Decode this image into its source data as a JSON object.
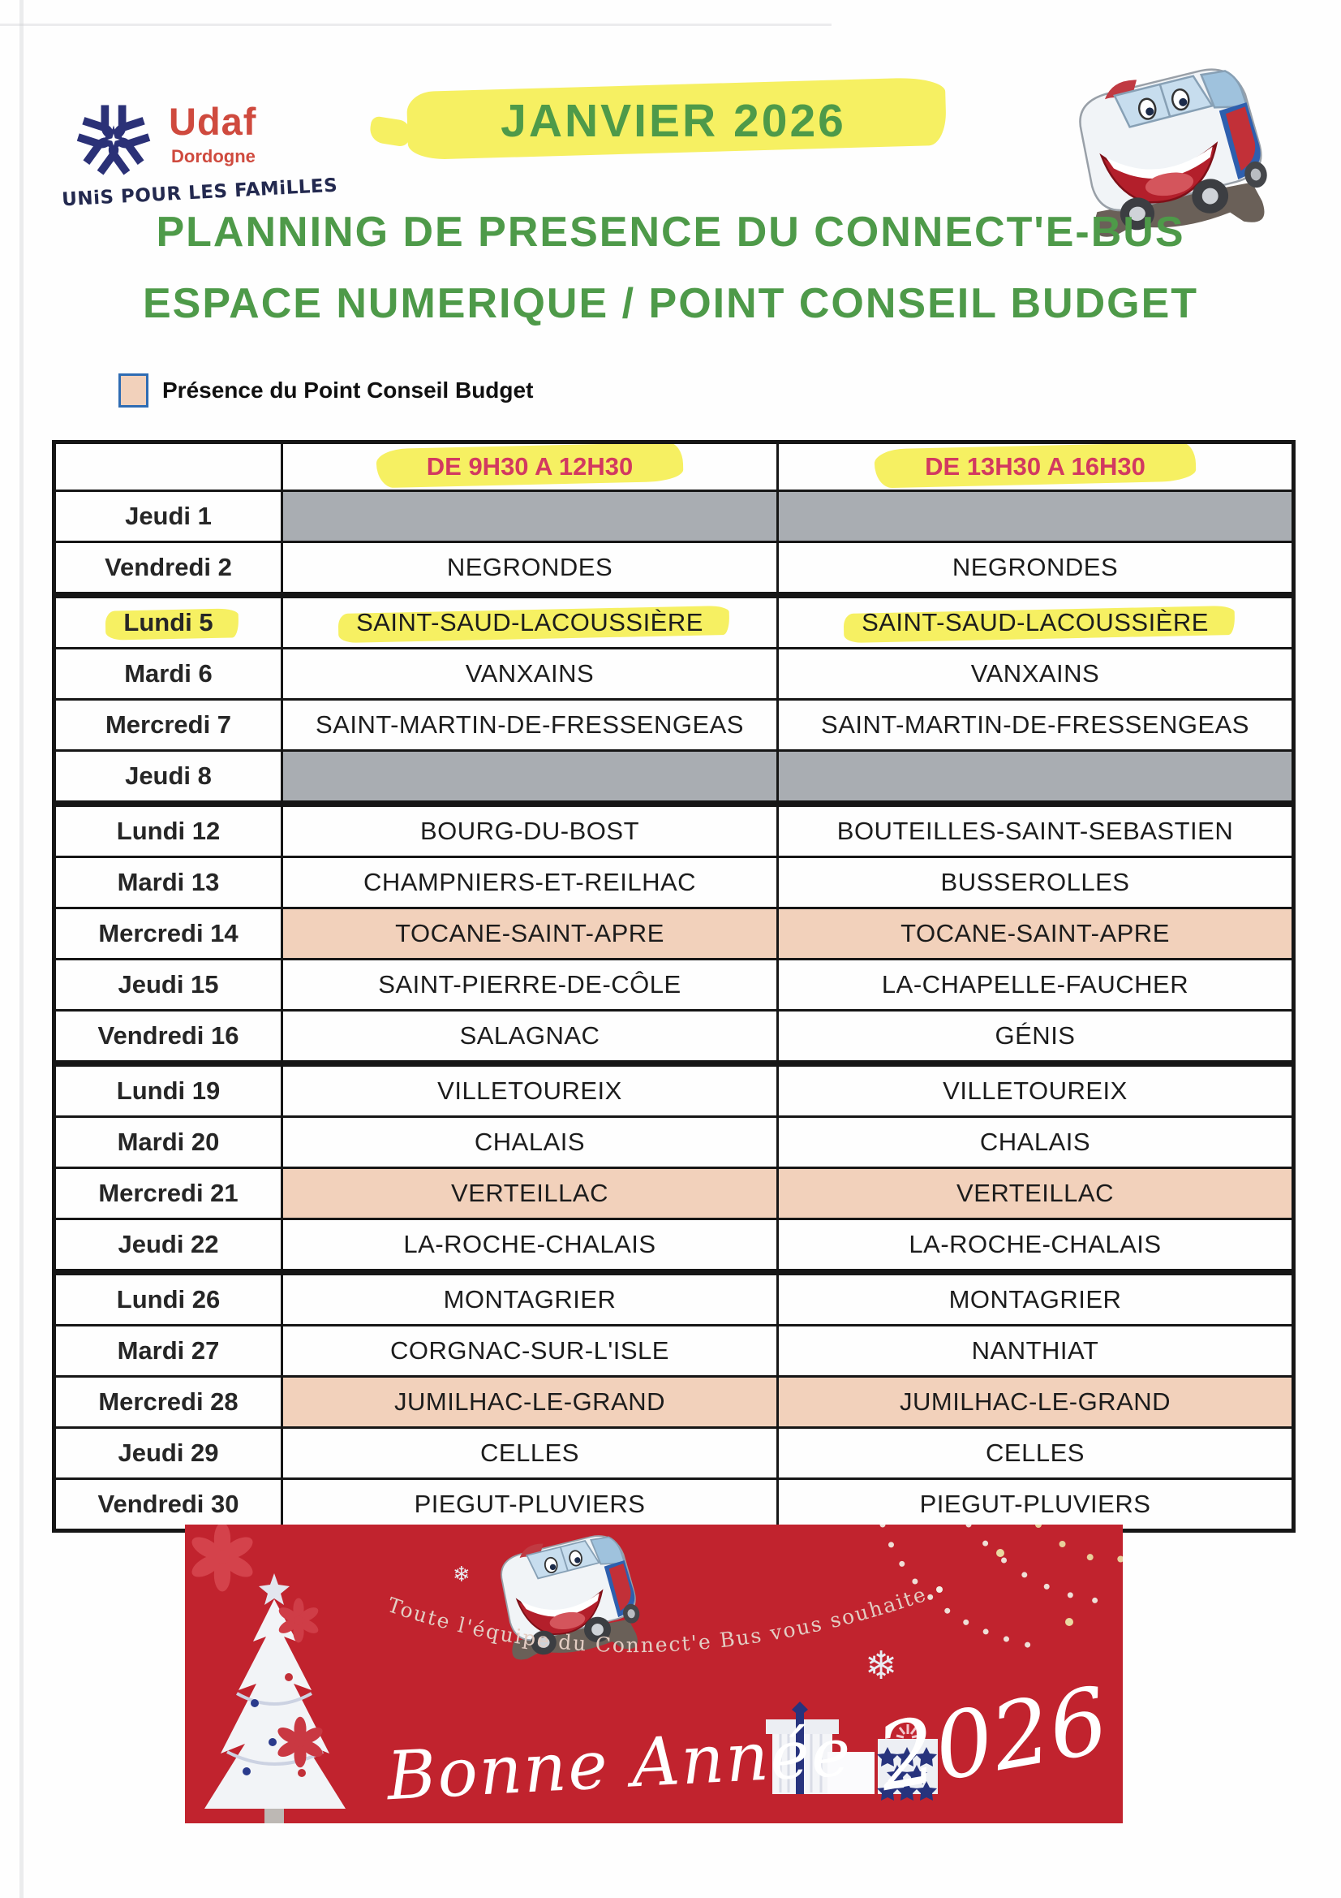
{
  "page": {
    "month_label": "JANVIER 2026",
    "title_line1": "PLANNING DE PRESENCE DU CONNECT'E-BUS",
    "title_line2": "ESPACE NUMERIQUE / POINT CONSEIL BUDGET"
  },
  "logo": {
    "name": "Udaf",
    "region": "Dordogne",
    "tagline": "UNiS POUR LES FAMiLLES"
  },
  "legend": {
    "label": "Présence du Point Conseil Budget"
  },
  "table": {
    "header": {
      "day": "",
      "morning": "DE 9H30 A 12H30",
      "afternoon": "DE 13H30 A 16H30"
    },
    "rows": [
      {
        "day": "Jeudi 1",
        "morning": "",
        "afternoon": "",
        "closed": true
      },
      {
        "day": "Vendredi 2",
        "morning": "NEGRONDES",
        "afternoon": "NEGRONDES"
      },
      {
        "day": "Lundi 5",
        "morning": "SAINT-SAUD-LACOUSSIÈRE",
        "afternoon": "SAINT-SAUD-LACOUSSIÈRE",
        "highlight": true,
        "week_start": true
      },
      {
        "day": "Mardi 6",
        "morning": "VANXAINS",
        "afternoon": "VANXAINS"
      },
      {
        "day": "Mercredi 7",
        "morning": "SAINT-MARTIN-DE-FRESSENGEAS",
        "afternoon": "SAINT-MARTIN-DE-FRESSENGEAS"
      },
      {
        "day": "Jeudi 8",
        "morning": "",
        "afternoon": "",
        "closed": true
      },
      {
        "day": "Lundi 12",
        "morning": "BOURG-DU-BOST",
        "afternoon": "BOUTEILLES-SAINT-SEBASTIEN",
        "week_start": true
      },
      {
        "day": "Mardi 13",
        "morning": "CHAMPNIERS-ET-REILHAC",
        "afternoon": "BUSSEROLLES"
      },
      {
        "day": "Mercredi 14",
        "morning": "TOCANE-SAINT-APRE",
        "afternoon": "TOCANE-SAINT-APRE",
        "pcb": true
      },
      {
        "day": "Jeudi 15",
        "morning": "SAINT-PIERRE-DE-CÔLE",
        "afternoon": "LA-CHAPELLE-FAUCHER"
      },
      {
        "day": "Vendredi 16",
        "morning": "SALAGNAC",
        "afternoon": "GÉNIS"
      },
      {
        "day": "Lundi 19",
        "morning": "VILLETOUREIX",
        "afternoon": "VILLETOUREIX",
        "week_start": true
      },
      {
        "day": "Mardi 20",
        "morning": "CHALAIS",
        "afternoon": "CHALAIS"
      },
      {
        "day": "Mercredi 21",
        "morning": "VERTEILLAC",
        "afternoon": "VERTEILLAC",
        "pcb": true
      },
      {
        "day": "Jeudi 22",
        "morning": "LA-ROCHE-CHALAIS",
        "afternoon": "LA-ROCHE-CHALAIS"
      },
      {
        "day": "Lundi 26",
        "morning": "MONTAGRIER",
        "afternoon": "MONTAGRIER",
        "week_start": true
      },
      {
        "day": "Mardi 27",
        "morning": "CORGNAC-SUR-L'ISLE",
        "afternoon": "NANTHIAT"
      },
      {
        "day": "Mercredi 28",
        "morning": "JUMILHAC-LE-GRAND",
        "afternoon": "JUMILHAC-LE-GRAND",
        "pcb": true
      },
      {
        "day": "Jeudi 29",
        "morning": "CELLES",
        "afternoon": "CELLES"
      },
      {
        "day": "Vendredi 30",
        "morning": "PIEGUT-PLUVIERS",
        "afternoon": "PIEGUT-PLUVIERS"
      }
    ]
  },
  "banner": {
    "arc_text": "Toute l'équipe du Connect'e Bus vous souhaite une",
    "greeting_script": "Bonne Année",
    "greeting_year": "2026"
  },
  "colors": {
    "title_green": "#4e9a49",
    "highlight_yellow": "#f6f062",
    "header_red": "#d23960",
    "pcb_salmon": "#f2d1bb",
    "closed_gray": "#a9adb2",
    "banner_red": "#c1232e",
    "logo_red": "#cf4a3e",
    "logo_blue": "#2b3177"
  }
}
